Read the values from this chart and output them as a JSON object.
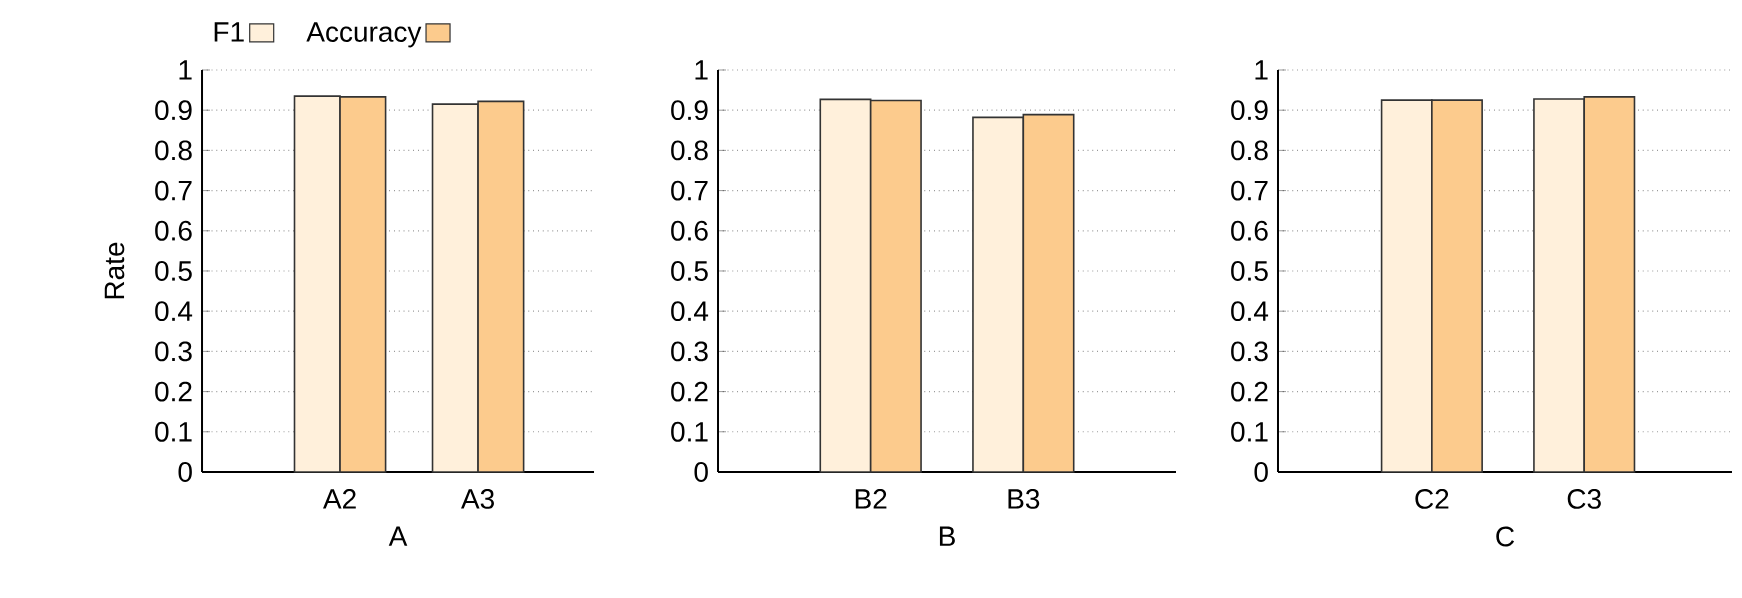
{
  "chart_data": [
    {
      "type": "bar",
      "categories": [
        "A2",
        "A3"
      ],
      "xlabel": "A",
      "ylabel": "Rate",
      "ylim": [
        0,
        1
      ],
      "yticks": [
        0,
        0.1,
        0.2,
        0.3,
        0.4,
        0.5,
        0.6,
        0.7,
        0.8,
        0.9,
        1
      ],
      "grid": "y",
      "legend": "top left",
      "series": [
        {
          "name": "F1",
          "color": "#fff0db",
          "values": [
            0.935,
            0.915
          ]
        },
        {
          "name": "Accuracy",
          "color": "#fccb8d",
          "values": [
            0.933,
            0.922
          ]
        }
      ]
    },
    {
      "type": "bar",
      "categories": [
        "B2",
        "B3"
      ],
      "xlabel": "B",
      "ylim": [
        0,
        1
      ],
      "yticks": [
        0,
        0.1,
        0.2,
        0.3,
        0.4,
        0.5,
        0.6,
        0.7,
        0.8,
        0.9,
        1
      ],
      "grid": "y",
      "series": [
        {
          "color": "#fff0db",
          "values": [
            0.927,
            0.882
          ]
        },
        {
          "color": "#fccb8d",
          "values": [
            0.924,
            0.889
          ]
        }
      ]
    },
    {
      "type": "bar",
      "categories": [
        "C2",
        "C3"
      ],
      "xlabel": "C",
      "ylim": [
        0,
        1
      ],
      "yticks": [
        0,
        0.1,
        0.2,
        0.3,
        0.4,
        0.5,
        0.6,
        0.7,
        0.8,
        0.9,
        1
      ],
      "grid": "y",
      "series": [
        {
          "color": "#fff0db",
          "values": [
            0.925,
            0.928
          ]
        },
        {
          "color": "#fccb8d",
          "values": [
            0.925,
            0.933
          ]
        }
      ]
    }
  ]
}
